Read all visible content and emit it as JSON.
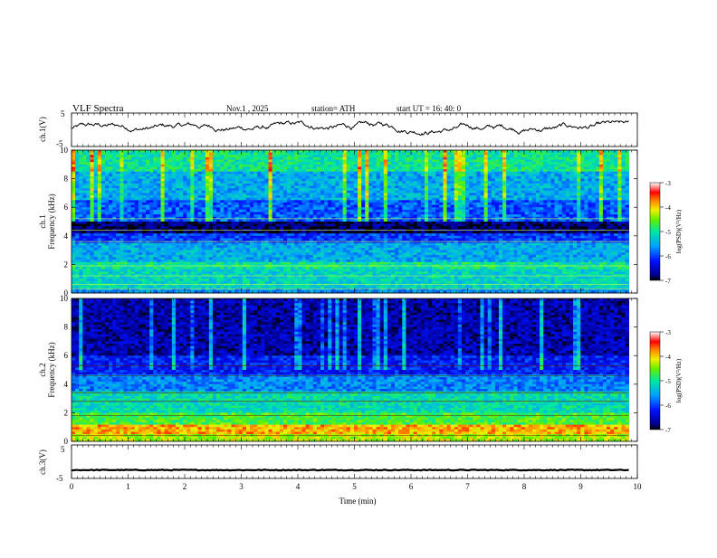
{
  "header": {
    "title": "VLF  Spectra",
    "date": "Nov.1  , 2025",
    "station": "station= ATH",
    "start": "start  UT  =    16: 40: 0"
  },
  "chart_data": [
    {
      "type": "line",
      "panel": "ch1-waveform",
      "ylabel": "ch.1(V)",
      "ylim": [
        -5,
        5
      ],
      "yticks": [
        "5",
        "-5"
      ],
      "xlim": [
        0,
        10
      ],
      "series": [
        {
          "values_desc": "noisy signal fluctuating roughly between -1.5 and 2.5 V",
          "color": "#000000"
        }
      ]
    },
    {
      "type": "heatmap",
      "panel": "ch1-spectrogram",
      "ylabel": "ch.1",
      "ylabel2": "Frequency  (kHz)",
      "ylim": [
        0,
        10
      ],
      "yticks": [
        "0",
        "2",
        "4",
        "6",
        "8",
        "10"
      ],
      "xlim": [
        0,
        9.85
      ],
      "bands": [
        {
          "from": 0,
          "to": 0.4,
          "level": -5.6
        },
        {
          "from": 0.4,
          "to": 1.6,
          "level": -5.2
        },
        {
          "from": 1.6,
          "to": 2.2,
          "level": -5.0
        },
        {
          "from": 2.2,
          "to": 3.5,
          "level": -5.5
        },
        {
          "from": 3.5,
          "to": 4.1,
          "level": -6.0
        },
        {
          "from": 4.1,
          "to": 5.0,
          "level": -6.8
        },
        {
          "from": 5.0,
          "to": 6.5,
          "level": -5.9
        },
        {
          "from": 6.5,
          "to": 8.5,
          "level": -5.5
        },
        {
          "from": 8.5,
          "to": 10,
          "level": -5.0
        }
      ],
      "colorbar": {
        "label": "log(PSD)(V²/Hz)",
        "ticks": [
          "-3",
          "-4",
          "-5",
          "-6",
          "-7"
        ],
        "range": [
          -7,
          -3
        ]
      }
    },
    {
      "type": "heatmap",
      "panel": "ch2-spectrogram",
      "ylabel": "ch.2",
      "ylabel2": "Frequency  (kHz)",
      "ylim": [
        0,
        10
      ],
      "yticks": [
        "0",
        "2",
        "4",
        "6",
        "8",
        "10"
      ],
      "xlim": [
        0,
        9.85
      ],
      "bands": [
        {
          "from": 0,
          "to": 0.5,
          "level": -4.3
        },
        {
          "from": 0.5,
          "to": 1.1,
          "level": -3.9
        },
        {
          "from": 1.1,
          "to": 2.0,
          "level": -4.7
        },
        {
          "from": 2.0,
          "to": 3.5,
          "level": -5.1
        },
        {
          "from": 3.5,
          "to": 4.6,
          "level": -5.7
        },
        {
          "from": 4.6,
          "to": 6.0,
          "level": -6.2
        },
        {
          "from": 6.0,
          "to": 10,
          "level": -6.6
        }
      ],
      "colorbar": {
        "label": "log(PSD)(V²/Hz)",
        "ticks": [
          "-3",
          "-4",
          "-5",
          "-6",
          "-7"
        ],
        "range": [
          -7,
          -3
        ]
      }
    },
    {
      "type": "line",
      "panel": "ch3-waveform",
      "ylabel": "ch.3(V)",
      "ylim": [
        -5,
        5
      ],
      "yticks": [
        "5",
        "-5"
      ],
      "xlabel": "Time  (min)",
      "xlim": [
        0,
        10
      ],
      "xticks": [
        "0",
        "1",
        "2",
        "3",
        "4",
        "5",
        "6",
        "7",
        "8",
        "9",
        "10"
      ],
      "series": [
        {
          "values_desc": "nearly flat signal near -2.5 V",
          "color": "#000000"
        }
      ]
    }
  ]
}
